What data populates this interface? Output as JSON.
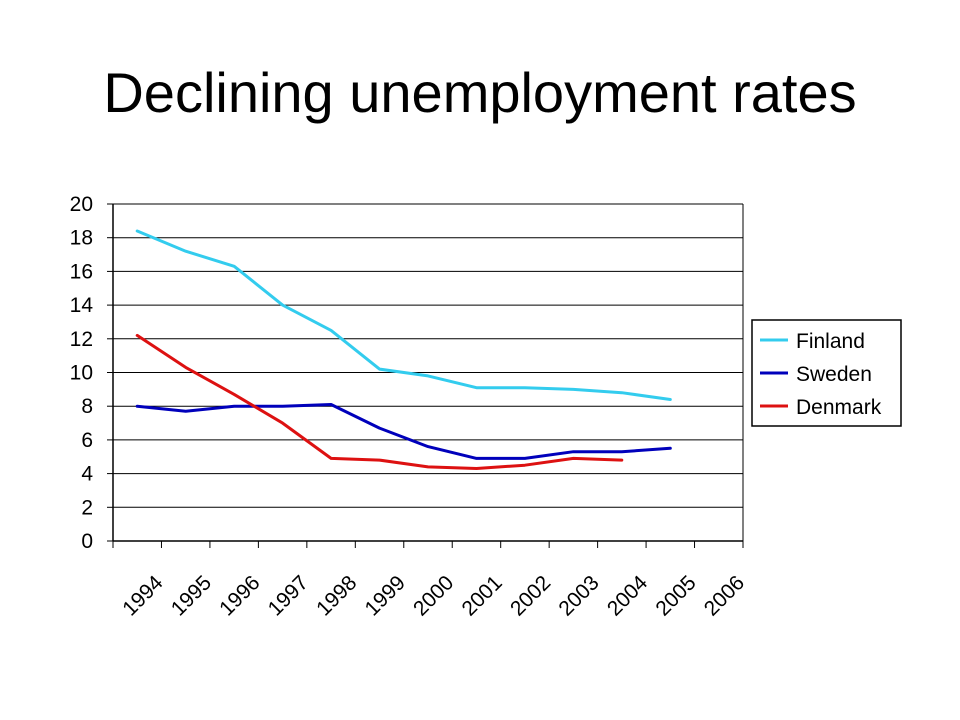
{
  "slide": {
    "title": "Declining unemployment rates"
  },
  "chart_data": {
    "type": "line",
    "title": "",
    "xlabel": "",
    "ylabel": "",
    "ylim": [
      0,
      20
    ],
    "yticks": [
      "0",
      "2",
      "4",
      "6",
      "8",
      "10",
      "12",
      "14",
      "16",
      "18",
      "20"
    ],
    "categories": [
      "1994",
      "1995",
      "1996",
      "1997",
      "1998",
      "1999",
      "2000",
      "2001",
      "2002",
      "2003",
      "2004",
      "2005",
      "2006"
    ],
    "grid": true,
    "legend_position": "right",
    "series": [
      {
        "name": "Finland",
        "color": "#33ccee",
        "values": [
          18.4,
          17.2,
          16.3,
          14.0,
          12.5,
          10.2,
          9.8,
          9.1,
          9.1,
          9.0,
          8.8,
          8.4,
          null
        ]
      },
      {
        "name": "Sweden",
        "color": "#0000bb",
        "values": [
          8.0,
          7.7,
          8.0,
          8.0,
          8.1,
          6.7,
          5.6,
          4.9,
          4.9,
          5.3,
          5.3,
          5.5,
          null
        ]
      },
      {
        "name": "Denmark",
        "color": "#dd1111",
        "values": [
          12.2,
          10.3,
          8.7,
          7.0,
          4.9,
          4.8,
          4.4,
          4.3,
          4.5,
          4.9,
          4.8,
          null,
          null
        ]
      }
    ]
  }
}
